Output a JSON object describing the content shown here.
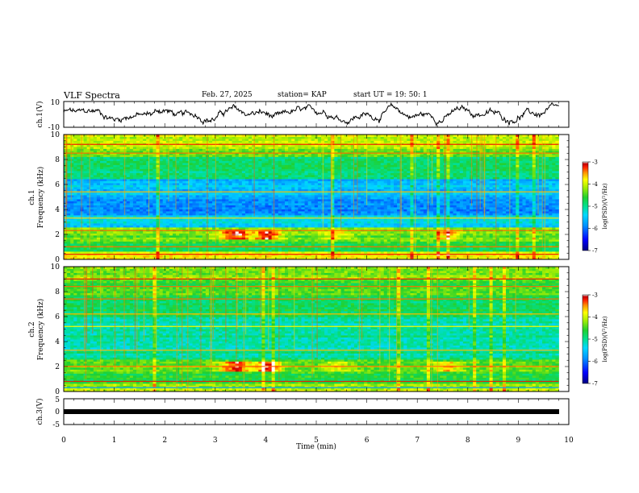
{
  "header": {
    "title": "VLF Spectra",
    "date": "Feb. 27, 2025",
    "station": "station= KAP",
    "start": "start  UT =   19: 50: 1"
  },
  "colors": {
    "colormap": [
      "#000080",
      "#0000ff",
      "#0080ff",
      "#00c8ff",
      "#00e0a0",
      "#20d040",
      "#80e000",
      "#ffff00",
      "#ffa000",
      "#ff2000",
      "#c00000",
      "#ffffff"
    ]
  },
  "chart_data": [
    {
      "type": "line",
      "ylabel": "ch.1(V)",
      "ylim": [
        -10,
        10
      ],
      "yticks": [
        "10",
        "-10"
      ],
      "xlim": [
        0,
        10
      ]
    },
    {
      "type": "heatmap",
      "ylabel_lines": [
        "ch.1",
        "Frequency (kHz)"
      ],
      "ylim": [
        0,
        10
      ],
      "yticks": [
        "0",
        "2",
        "4",
        "6",
        "8",
        "10"
      ],
      "xlim": [
        0,
        10
      ],
      "data_xmax": 9.8,
      "colorbar": {
        "range": [
          -7,
          -3
        ],
        "ticks": [
          "-3",
          "-4",
          "-5",
          "-6",
          "-7"
        ],
        "label": "log(PSD)(V²/Hz)"
      }
    },
    {
      "type": "heatmap",
      "ylabel_lines": [
        "ch.2",
        "Frequency (kHz)"
      ],
      "ylim": [
        0,
        10
      ],
      "yticks": [
        "0",
        "2",
        "4",
        "6",
        "8",
        "10"
      ],
      "xlim": [
        0,
        10
      ],
      "data_xmax": 9.8,
      "colorbar": {
        "range": [
          -7,
          -3
        ],
        "ticks": [
          "-3",
          "-4",
          "-5",
          "-6",
          "-7"
        ],
        "label": "log(PSD)(V²/Hz)"
      }
    },
    {
      "type": "line",
      "ylabel": "ch.3(V)",
      "ylim": [
        -5,
        5
      ],
      "yticks": [
        "5",
        "0",
        "-5"
      ],
      "xlim": [
        0,
        10
      ],
      "xlabel": "Time  (min)",
      "xticks": [
        "0",
        "1",
        "2",
        "3",
        "4",
        "5",
        "6",
        "7",
        "8",
        "9",
        "10"
      ]
    }
  ]
}
